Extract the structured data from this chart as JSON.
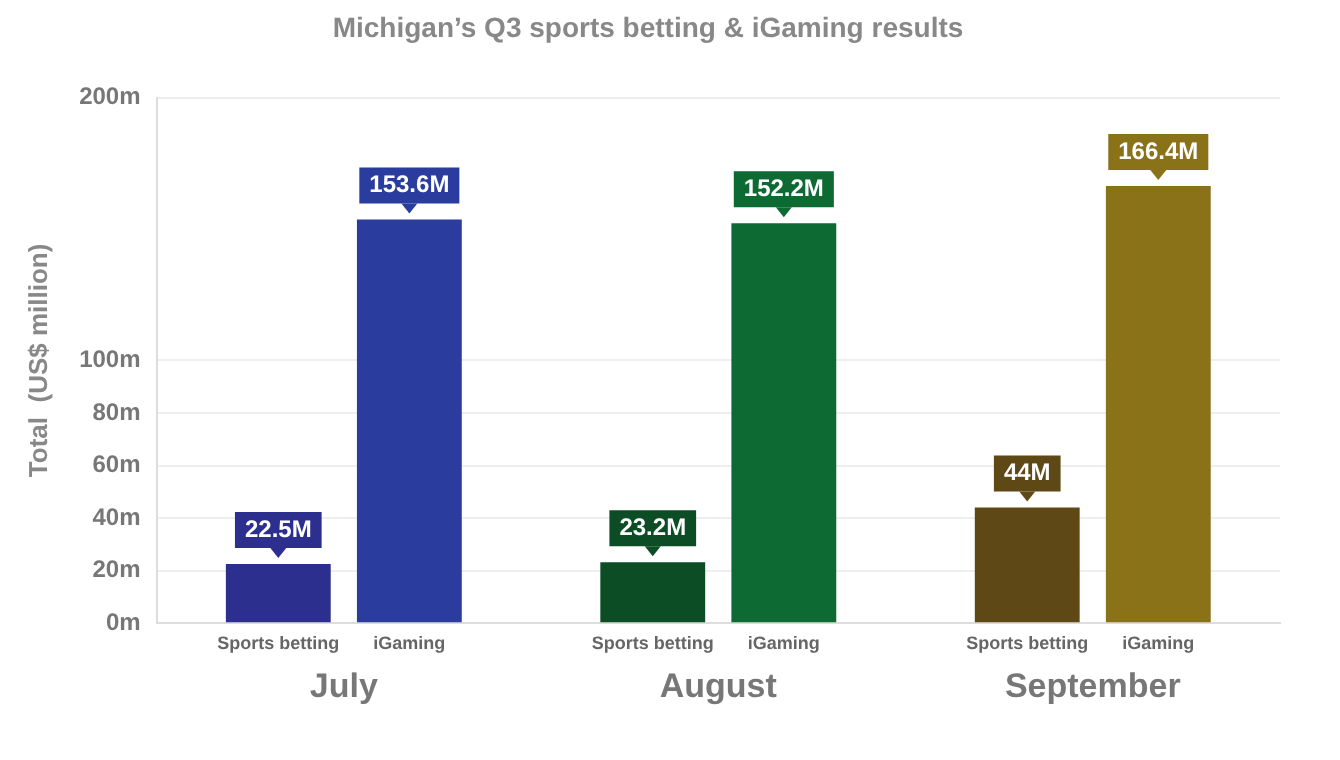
{
  "chart_data": {
    "type": "bar",
    "title": "Michigan’s Q3 sports betting & iGaming results",
    "ylabel": "Total  (US$ million)",
    "categories": [
      "July",
      "August",
      "September"
    ],
    "series": [
      {
        "name": "Sports betting",
        "colors": [
          "#2c2f8e",
          "#0c4d26",
          "#5e4916"
        ],
        "values": [
          22.5,
          23.2,
          44
        ],
        "value_labels": [
          "22.5M",
          "23.2M",
          "44M"
        ]
      },
      {
        "name": "iGaming",
        "colors": [
          "#2a3d9e",
          "#0e6a33",
          "#8a7219"
        ],
        "values": [
          153.6,
          152.2,
          166.4
        ],
        "value_labels": [
          "153.6M",
          "152.2M",
          "166.4M"
        ]
      }
    ],
    "ylim": [
      0,
      200
    ],
    "yticks": [
      {
        "value": 0,
        "label": "0m"
      },
      {
        "value": 20,
        "label": "20m"
      },
      {
        "value": 40,
        "label": "40m"
      },
      {
        "value": 60,
        "label": "60m"
      },
      {
        "value": 80,
        "label": "80m"
      },
      {
        "value": 100,
        "label": "100m"
      },
      {
        "value": 200,
        "label": "200m"
      }
    ],
    "grid": "y",
    "legend": false
  }
}
